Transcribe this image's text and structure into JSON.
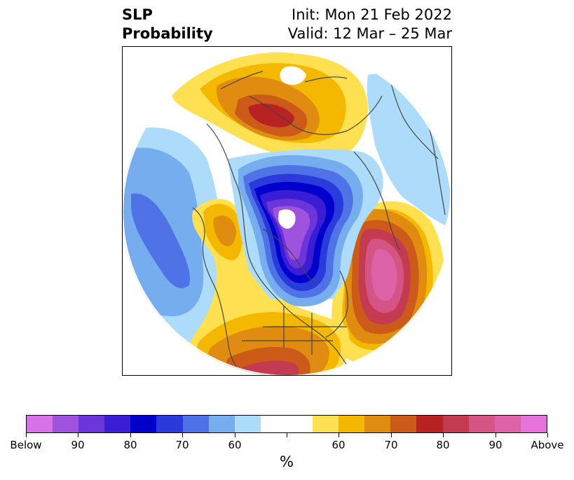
{
  "title": {
    "left_line1": "SLP",
    "left_line2": "Probability",
    "right_line1": "Init: Mon 21 Feb 2022",
    "right_line2": "Valid: 12 Mar – 25 Mar"
  },
  "colorbar": {
    "unit": "%",
    "colors": [
      "#d673e6",
      "#9e52de",
      "#6b35d9",
      "#3a1dd4",
      "#0000cc",
      "#2a3bdc",
      "#4f73e6",
      "#76adef",
      "#acdcfa",
      "#ffffff",
      "#ffffff",
      "#ffe050",
      "#f5b800",
      "#e08c10",
      "#cc5a18",
      "#b82222",
      "#c43a50",
      "#d45485",
      "#dd62a8",
      "#e673db"
    ],
    "tick_labels": [
      "Below",
      "90",
      "80",
      "70",
      "60",
      "",
      "60",
      "70",
      "80",
      "90",
      "Above"
    ]
  },
  "map": {
    "projection": "north-polar-stereographic",
    "field": "sea-level pressure tercile probability",
    "regions": [
      {
        "name": "north-america-anomaly",
        "category": "below",
        "max_level": "Below"
      },
      {
        "name": "north-atlantic-anomaly",
        "category": "above",
        "max_level": "90"
      },
      {
        "name": "eurasia-anomaly",
        "category": "above",
        "max_level": "80"
      },
      {
        "name": "north-pacific-anomaly",
        "category": "below",
        "max_level": "70"
      },
      {
        "name": "southern-us-anomaly",
        "category": "above",
        "max_level": "80"
      }
    ]
  }
}
